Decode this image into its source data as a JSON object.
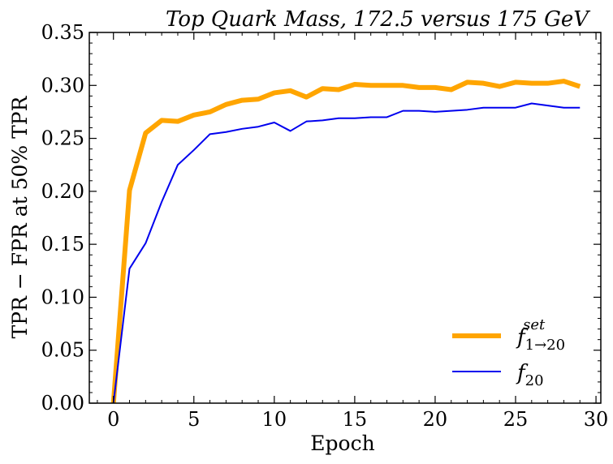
{
  "chart_data": {
    "type": "line",
    "title": "Top Quark Mass, 172.5 versus 175 GeV",
    "xlabel": "Epoch",
    "ylabel": "TPR − FPR at 50% TPR",
    "xlim": [
      -1.5,
      30.3
    ],
    "ylim": [
      0,
      0.35
    ],
    "xticks": [
      0,
      5,
      10,
      15,
      20,
      25,
      30
    ],
    "yticks": [
      0.0,
      0.05,
      0.1,
      0.15,
      0.2,
      0.25,
      0.3,
      0.35
    ],
    "grid": false,
    "legend_position": "lower-right",
    "x": [
      0,
      1,
      2,
      3,
      4,
      5,
      6,
      7,
      8,
      9,
      10,
      11,
      12,
      13,
      14,
      15,
      16,
      17,
      18,
      19,
      20,
      21,
      22,
      23,
      24,
      25,
      26,
      27,
      28,
      29
    ],
    "series": [
      {
        "name_base": "f",
        "name_sub": "1→20",
        "name_sup": "set",
        "color": "#FFA500",
        "line_width": "thick",
        "values": [
          0.0,
          0.201,
          0.255,
          0.267,
          0.266,
          0.272,
          0.275,
          0.282,
          0.286,
          0.287,
          0.293,
          0.295,
          0.289,
          0.297,
          0.296,
          0.301,
          0.3,
          0.3,
          0.3,
          0.298,
          0.298,
          0.296,
          0.303,
          0.302,
          0.299,
          0.303,
          0.302,
          0.302,
          0.304,
          0.299
        ]
      },
      {
        "name_base": "f",
        "name_sub": "20",
        "name_sup": "",
        "color": "#0000EE",
        "line_width": "thin",
        "values": [
          0.0,
          0.127,
          0.151,
          0.19,
          0.225,
          0.239,
          0.254,
          0.256,
          0.259,
          0.261,
          0.265,
          0.257,
          0.266,
          0.267,
          0.269,
          0.269,
          0.27,
          0.27,
          0.276,
          0.276,
          0.275,
          0.276,
          0.277,
          0.279,
          0.279,
          0.279,
          0.283,
          0.281,
          0.279,
          0.279
        ]
      }
    ]
  }
}
